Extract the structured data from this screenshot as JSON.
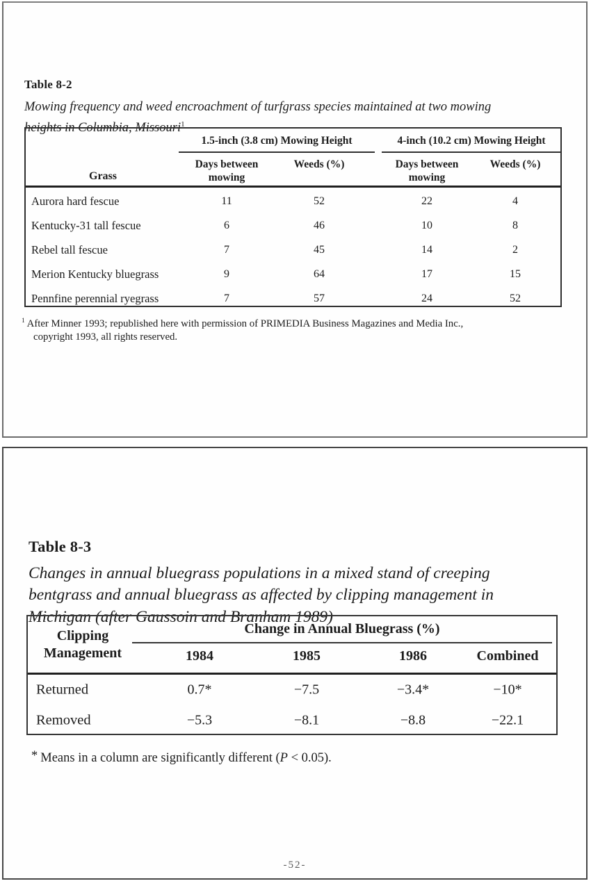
{
  "panel1": {
    "title": "Table 8-2",
    "caption_line1": "Mowing frequency and weed encroachment of turfgrass species maintained at two mowing",
    "caption_line2": "heights in Columbia, Missouri",
    "caption_footnote_marker": "1",
    "table": {
      "grass_header": "Grass",
      "group1": "1.5-inch (3.8 cm) Mowing Height",
      "group2": "4-inch (10.2 cm) Mowing Height",
      "sub1_line1": "Days between",
      "sub1_line2": "mowing",
      "sub2": "Weeds (%)",
      "sub3_line1": "Days between",
      "sub3_line2": "mowing",
      "sub4": "Weeds (%)",
      "rows": [
        {
          "grass": "Aurora hard fescue",
          "v1": "11",
          "v2": "52",
          "v3": "22",
          "v4": "4"
        },
        {
          "grass": "Kentucky-31 tall fescue",
          "v1": "6",
          "v2": "46",
          "v3": "10",
          "v4": "8"
        },
        {
          "grass": "Rebel tall fescue",
          "v1": "7",
          "v2": "45",
          "v3": "14",
          "v4": "2"
        },
        {
          "grass": "Merion Kentucky bluegrass",
          "v1": "9",
          "v2": "64",
          "v3": "17",
          "v4": "15"
        },
        {
          "grass": "Pennfine perennial ryegrass",
          "v1": "7",
          "v2": "57",
          "v3": "24",
          "v4": "52"
        }
      ]
    },
    "footnote_marker": "1",
    "footnote_line1": "After Minner 1993; republished here with permission of PRIMEDIA Business Magazines and Media Inc.,",
    "footnote_line2": "copyright 1993, all rights reserved."
  },
  "panel2": {
    "title": "Table 8-3",
    "caption_line1": "Changes in annual bluegrass populations in a mixed stand of creeping",
    "caption_line2": "bentgrass and annual bluegrass as affected by clipping management in",
    "caption_line3": "Michigan (after Gaussoin and Branham 1989)",
    "table": {
      "row_header_line1": "Clipping",
      "row_header_line2": "Management",
      "group": "Change in Annual Bluegrass (%)",
      "year1": "1984",
      "year2": "1985",
      "year3": "1986",
      "year4": "Combined",
      "rows": [
        {
          "label": "Returned",
          "v1": "0.7*",
          "v2": "−7.5",
          "v3": "−3.4*",
          "v4": "−10*"
        },
        {
          "label": "Removed",
          "v1": "−5.3",
          "v2": "−8.1",
          "v3": "−8.8",
          "v4": "−22.1"
        }
      ]
    },
    "footnote_marker": "*",
    "footnote_before": "Means in a column are significantly different (",
    "footnote_italic": "P",
    "footnote_after": " < 0.05)."
  },
  "page_number": "-52-"
}
